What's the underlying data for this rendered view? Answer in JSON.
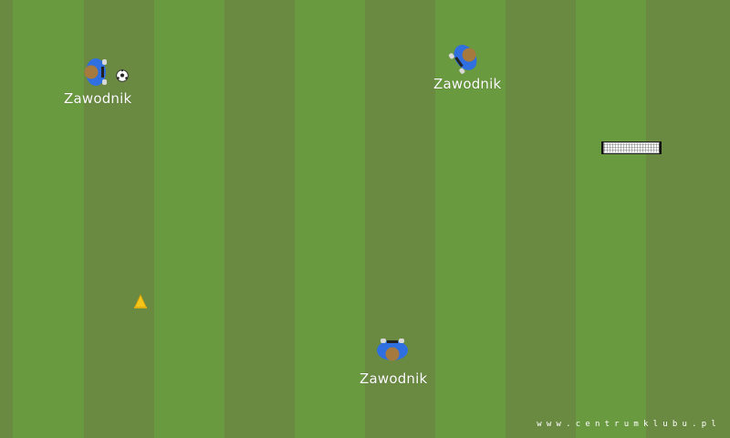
{
  "colors": {
    "pitch_dark": "#6a8a41",
    "pitch_light": "#6a9a3f",
    "jersey": "#2f6fe0",
    "skin": "#c59a5b",
    "cone": "#f5c518"
  },
  "players": [
    {
      "label": "Zawodnik",
      "facing": "right"
    },
    {
      "label": "Zawodnik",
      "facing": "down-right"
    },
    {
      "label": "Zawodnik",
      "facing": "down"
    }
  ],
  "objects": {
    "ball_icon": "soccer-ball-icon",
    "cone_icon": "training-cone-icon",
    "goal_icon": "mini-goal-icon"
  },
  "watermark": "www.centrumklubu.pl"
}
